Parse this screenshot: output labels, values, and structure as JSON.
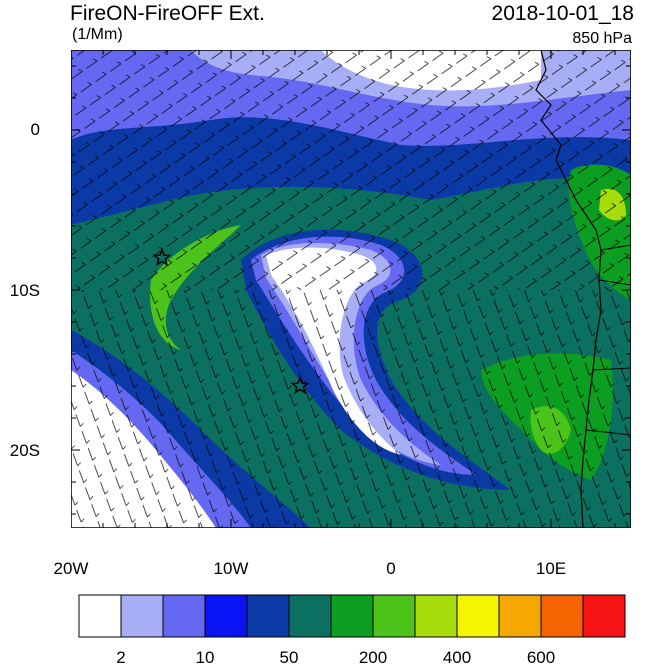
{
  "header": {
    "title_left": "FireON-FireOFF Ext.",
    "units": "(1/Mm)",
    "title_right": "2018-10-01_18",
    "level": "850 hPa"
  },
  "map": {
    "lat_labels": [
      "0",
      "10S",
      "20S"
    ],
    "lon_labels": [
      "20W",
      "10W",
      "0",
      "10E"
    ],
    "markers": [
      "star-marker",
      "star-marker"
    ]
  },
  "colorbar": {
    "colors": [
      "#ffffff",
      "#a8aef5",
      "#6569f2",
      "#0a15f5",
      "#0b3aa6",
      "#0b7060",
      "#0b9e20",
      "#4cc31a",
      "#a5dc0a",
      "#f5f502",
      "#f5a900",
      "#f56400",
      "#f51313"
    ],
    "labels": [
      "2",
      "10",
      "50",
      "200",
      "400",
      "600"
    ]
  }
}
